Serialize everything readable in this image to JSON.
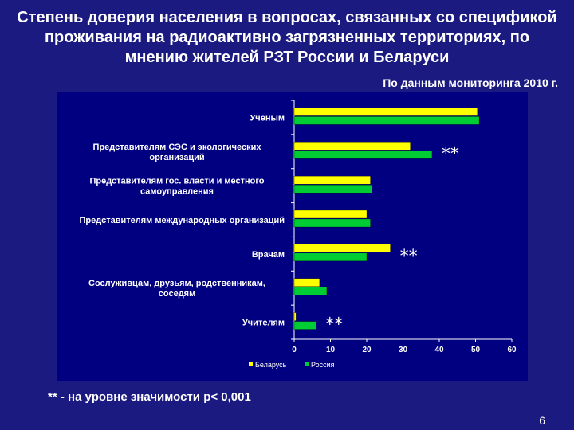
{
  "slide": {
    "title": "Степень доверия населения в вопросах, связанных со спецификой проживания на радиоактивно загрязненных территориях, по мнению жителей РЗТ России и Беларуси",
    "source": "По данным мониторинга 2010 г.",
    "note": "** - на уровне значимости p< 0,001",
    "page_number": "6"
  },
  "chart_data": {
    "type": "bar",
    "orientation": "horizontal",
    "categories": [
      "Ученым",
      "Представителям СЭС и экологических организаций",
      "Представителям гос. власти и местного самоуправления",
      "Представителям международных организаций",
      "Врачам",
      "Сослуживцам, друзьям, родственникам, соседям",
      "Учителям"
    ],
    "series": [
      {
        "name": "Беларусь",
        "color": "#ffff00",
        "values": [
          50.5,
          32,
          21,
          20,
          26.5,
          7,
          0.5
        ]
      },
      {
        "name": "Россия",
        "color": "#00cc33",
        "values": [
          51,
          38,
          21.5,
          21,
          20,
          9,
          6
        ]
      }
    ],
    "xlim": [
      0,
      60
    ],
    "xticks": [
      0,
      10,
      20,
      30,
      40,
      50,
      60
    ],
    "significance_markers": [
      {
        "category": "Представителям СЭС и экологических организаций",
        "text": "**"
      },
      {
        "category": "Врачам",
        "text": "**"
      },
      {
        "category": "Учителям",
        "text": "**"
      }
    ],
    "legend_position": "bottom",
    "grid": false
  }
}
